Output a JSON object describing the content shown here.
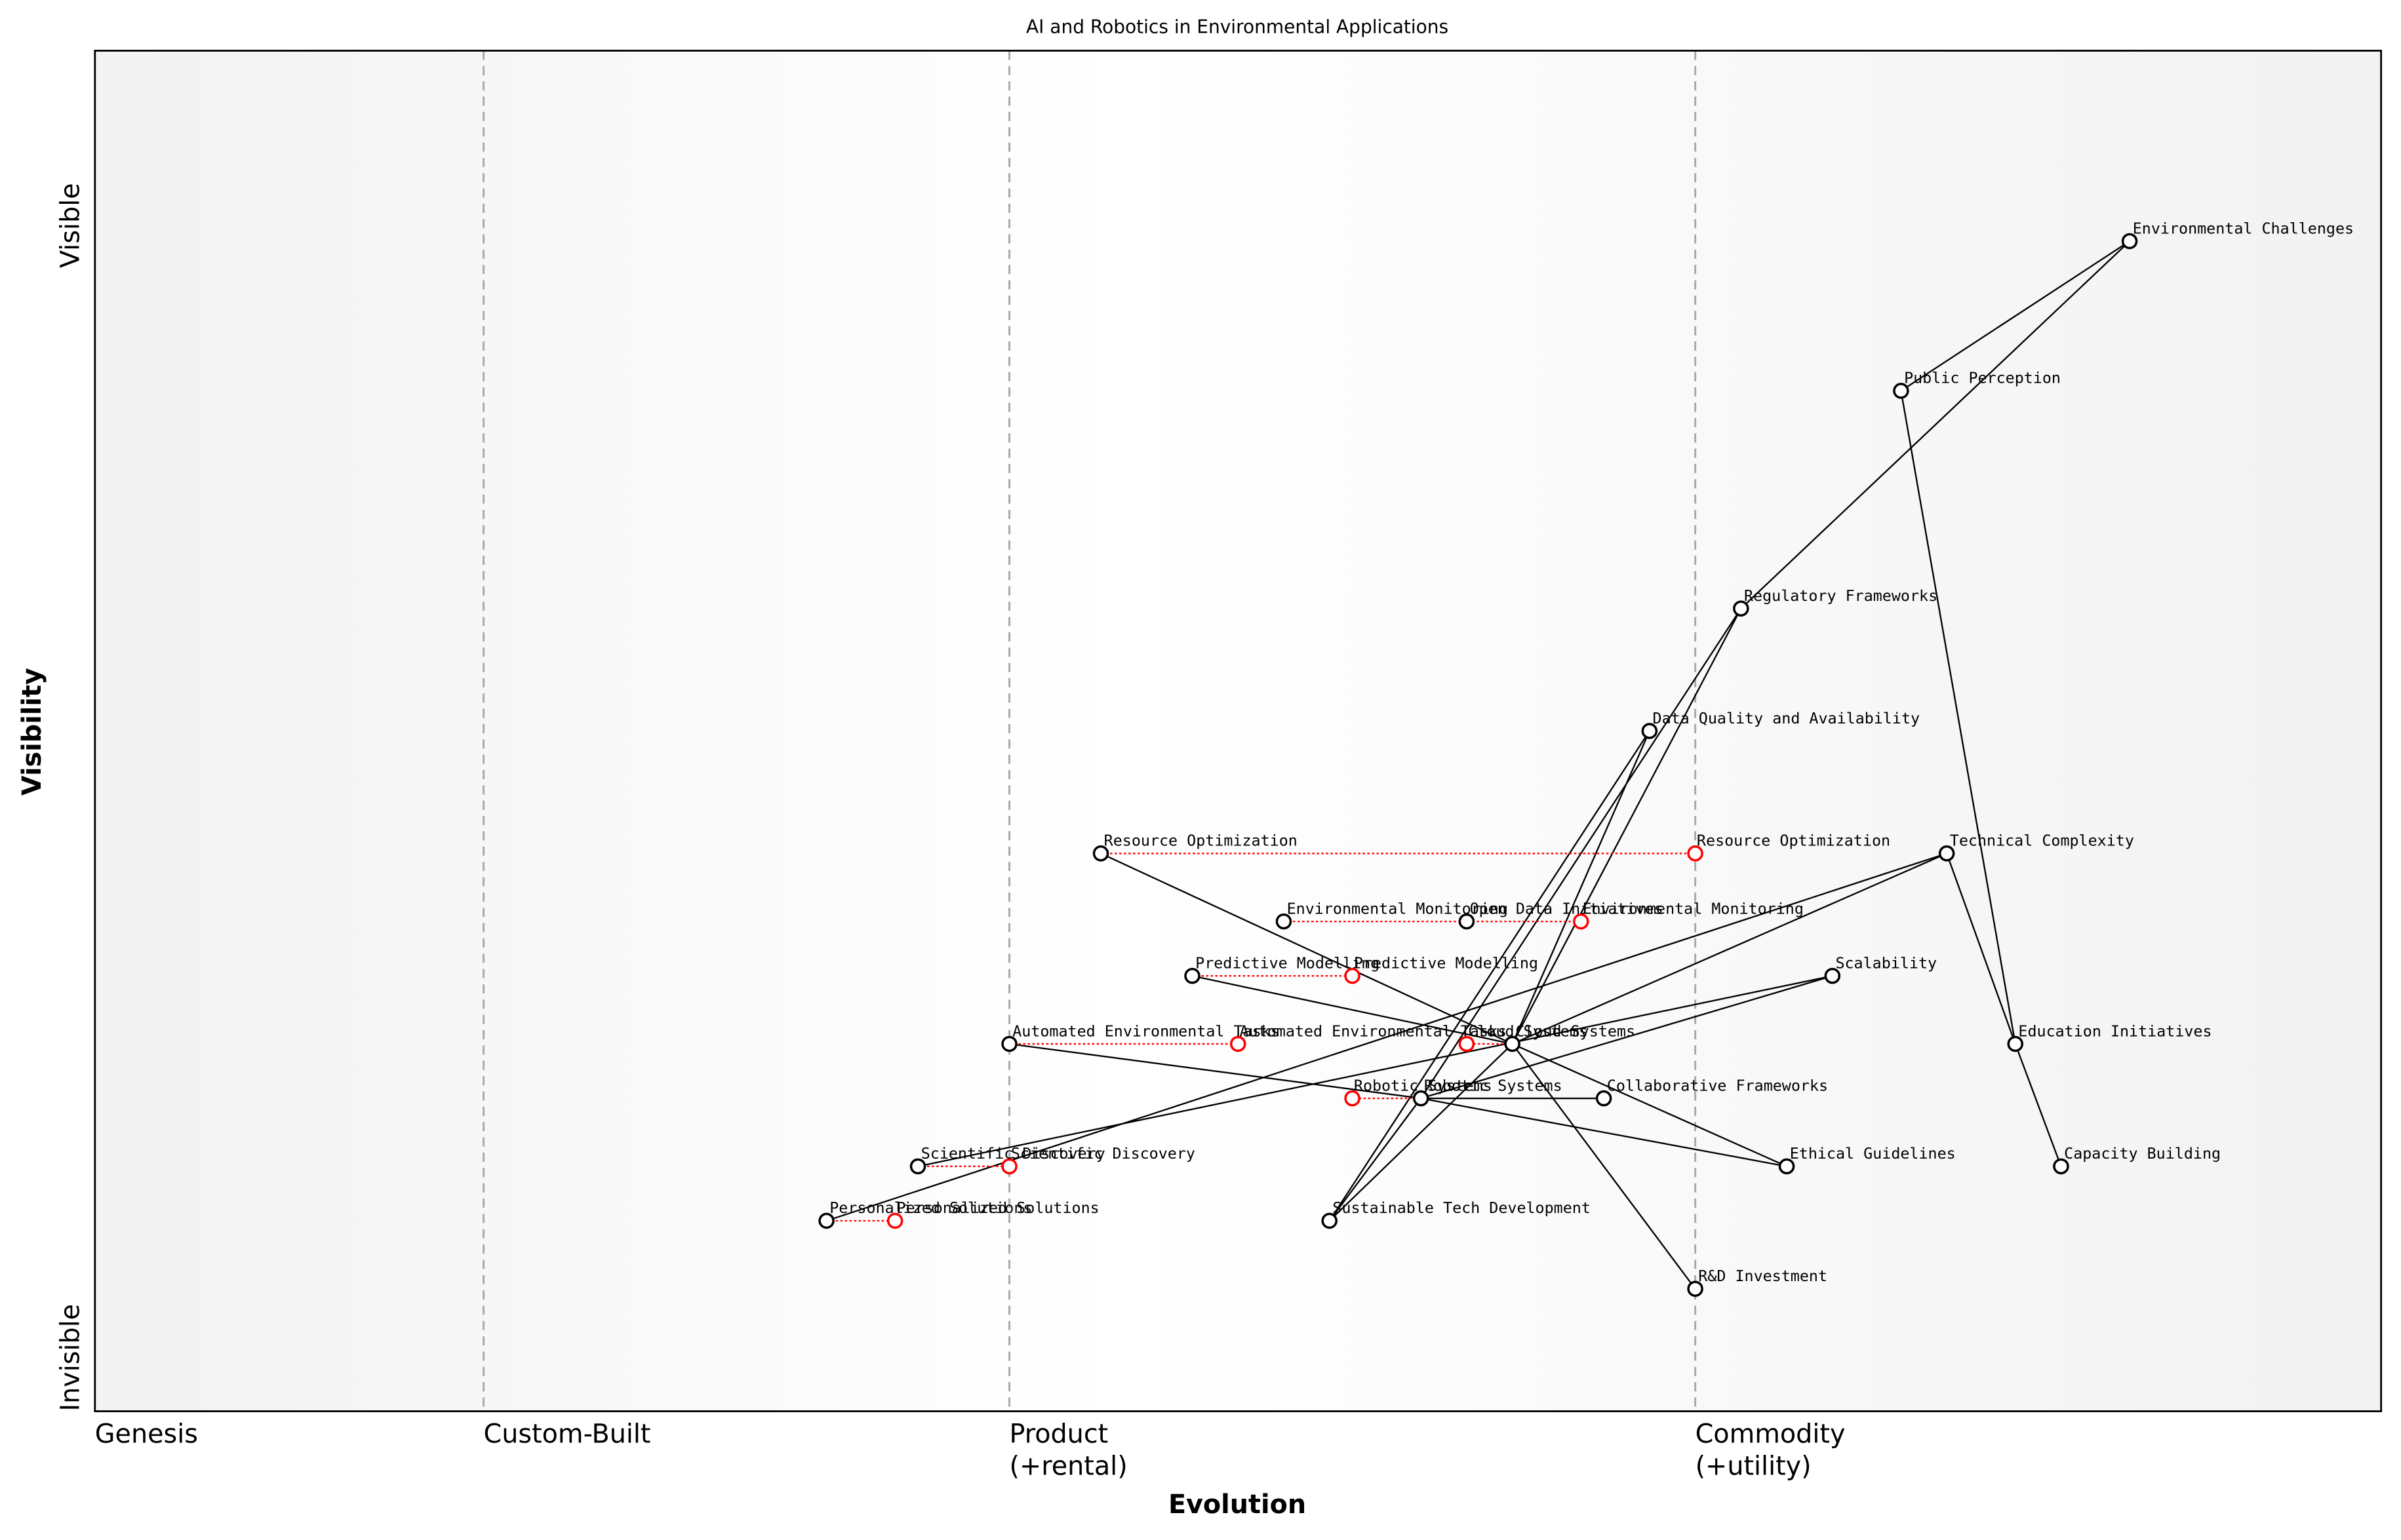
{
  "chart_data": {
    "type": "wardley",
    "title": "AI and Robotics in Environmental Applications",
    "x_label": "Evolution",
    "y_label": "Visibility",
    "visibility_labels": [
      "Visible",
      "Invisible"
    ],
    "xlim": [
      0,
      1
    ],
    "ylim": [
      0,
      1
    ],
    "stages": [
      {
        "value": 0,
        "label": [
          "Genesis"
        ]
      },
      {
        "value": 0.17,
        "label": [
          "Custom-Built"
        ]
      },
      {
        "value": 0.4,
        "label": [
          "Product",
          "(+rental)"
        ]
      },
      {
        "value": 0.7,
        "label": [
          "Commodity",
          "(+utility)"
        ]
      }
    ],
    "nodes": [
      {
        "name": "Environmental Challenges",
        "x": 0.89,
        "y": 0.86
      },
      {
        "name": "Public Perception",
        "x": 0.79,
        "y": 0.75
      },
      {
        "name": "Regulatory Frameworks",
        "x": 0.72,
        "y": 0.59
      },
      {
        "name": "Data Quality and Availability",
        "x": 0.68,
        "y": 0.5
      },
      {
        "name": "Resource Optimization",
        "x": 0.44,
        "y": 0.41,
        "evolve": 0.7
      },
      {
        "name": "Technical Complexity",
        "x": 0.81,
        "y": 0.41
      },
      {
        "name": "Environmental Monitoring",
        "x": 0.52,
        "y": 0.36,
        "evolve": 0.65
      },
      {
        "name": "Open Data Initiatives",
        "x": 0.6,
        "y": 0.36
      },
      {
        "name": "Scalability",
        "x": 0.76,
        "y": 0.32
      },
      {
        "name": "Predictive Modelling",
        "x": 0.48,
        "y": 0.32,
        "evolve": 0.55
      },
      {
        "name": "Automated Environmental Tasks",
        "x": 0.4,
        "y": 0.27,
        "evolve": 0.5
      },
      {
        "name": "Cloud Systems",
        "x": 0.62,
        "y": 0.27,
        "evolve": 0.6
      },
      {
        "name": "Education Initiatives",
        "x": 0.84,
        "y": 0.27
      },
      {
        "name": "Robotic Systems",
        "x": 0.58,
        "y": 0.23,
        "evolve": 0.55
      },
      {
        "name": "Collaborative Frameworks",
        "x": 0.66,
        "y": 0.23
      },
      {
        "name": "Scientific Discovery",
        "x": 0.36,
        "y": 0.18,
        "evolve": 0.4
      },
      {
        "name": "Ethical Guidelines",
        "x": 0.74,
        "y": 0.18
      },
      {
        "name": "Capacity Building",
        "x": 0.86,
        "y": 0.18
      },
      {
        "name": "Personalized Solutions",
        "x": 0.32,
        "y": 0.14,
        "evolve": 0.35
      },
      {
        "name": "Sustainable Tech Development",
        "x": 0.54,
        "y": 0.14
      },
      {
        "name": "R&D Investment",
        "x": 0.7,
        "y": 0.09
      }
    ],
    "links": [
      [
        "Environmental Challenges",
        "Public Perception"
      ],
      [
        "Environmental Challenges",
        "Regulatory Frameworks"
      ],
      [
        "Public Perception",
        "Education Initiatives"
      ],
      [
        "Regulatory Frameworks",
        "Robotic Systems"
      ],
      [
        "Regulatory Frameworks",
        "Cloud Systems"
      ],
      [
        "Data Quality and Availability",
        "Cloud Systems"
      ],
      [
        "Data Quality and Availability",
        "Sustainable Tech Development"
      ],
      [
        "Technical Complexity",
        "Education Initiatives"
      ],
      [
        "Technical Complexity",
        "Cloud Systems"
      ],
      [
        "Technical Complexity",
        "Personalized Solutions"
      ],
      [
        "Scalability",
        "Scientific Discovery"
      ],
      [
        "Scalability",
        "Robotic Systems"
      ],
      [
        "Education Initiatives",
        "Capacity Building"
      ],
      [
        "Resource Optimization",
        "Cloud Systems"
      ],
      [
        "Predictive Modelling",
        "Cloud Systems"
      ],
      [
        "Automated Environmental Tasks",
        "Robotic Systems"
      ],
      [
        "Robotic Systems",
        "Collaborative Frameworks"
      ],
      [
        "Robotic Systems",
        "Ethical Guidelines"
      ],
      [
        "Robotic Systems",
        "Sustainable Tech Development"
      ],
      [
        "Cloud Systems",
        "R&D Investment"
      ],
      [
        "Cloud Systems",
        "Ethical Guidelines"
      ],
      [
        "Sustainable Tech Development",
        "Cloud Systems"
      ]
    ]
  }
}
